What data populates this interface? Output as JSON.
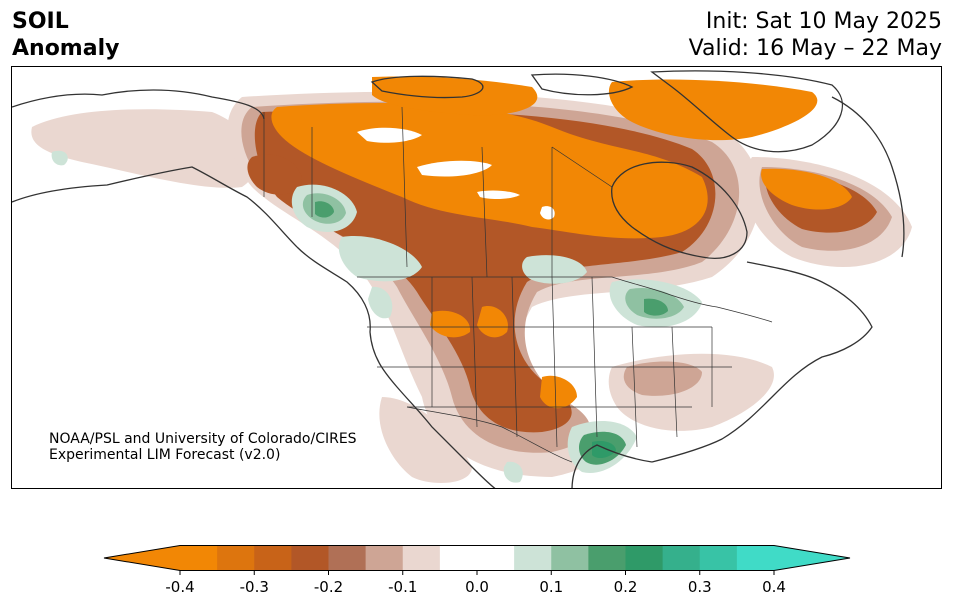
{
  "header": {
    "title_line1": "SOIL",
    "title_line2": "Anomaly",
    "init_text": "Init: Sat 10 May 2025",
    "valid_text": "Valid: 16 May – 22 May"
  },
  "credit": {
    "line1": "NOAA/PSL and University of Colorado/CIRES",
    "line2": "Experimental LIM Forecast (v2.0)"
  },
  "colorbar": {
    "bins": [
      {
        "color": "#f28705"
      },
      {
        "color": "#dd750e"
      },
      {
        "color": "#c86318"
      },
      {
        "color": "#b25727"
      },
      {
        "color": "#b07056"
      },
      {
        "color": "#cea595"
      },
      {
        "color": "#ead7d0"
      },
      {
        "color": "#ffffff"
      },
      {
        "color": "#ffffff"
      },
      {
        "color": "#cde3d7"
      },
      {
        "color": "#8fc1a2"
      },
      {
        "color": "#4a9e6d"
      },
      {
        "color": "#2f9a68"
      },
      {
        "color": "#35b08c"
      },
      {
        "color": "#38c3a6"
      },
      {
        "color": "#40dbc7"
      }
    ],
    "under_color": "#f28705",
    "over_color": "#40dbc7",
    "ticks": [
      {
        "label": "-0.4",
        "value": -0.4
      },
      {
        "label": "-0.3",
        "value": -0.3
      },
      {
        "label": "-0.2",
        "value": -0.2
      },
      {
        "label": "-0.1",
        "value": -0.1
      },
      {
        "label": "0.0",
        "value": 0.0
      },
      {
        "label": "0.1",
        "value": 0.1
      },
      {
        "label": "0.2",
        "value": 0.2
      },
      {
        "label": "0.3",
        "value": 0.3
      },
      {
        "label": "0.4",
        "value": 0.4
      }
    ],
    "range": [
      -0.4,
      0.4
    ]
  },
  "map_colors": {
    "dry_strong": "#f28705",
    "dry_med": "#c86318",
    "dry_brown": "#b25727",
    "dry_light": "#cea595",
    "dry_faint": "#ead7d0",
    "wet_faint": "#cde3d7",
    "wet_light": "#8fc1a2",
    "wet_med": "#4a9e6d",
    "wet_strong": "#2f9a68",
    "coast": "#333333"
  }
}
